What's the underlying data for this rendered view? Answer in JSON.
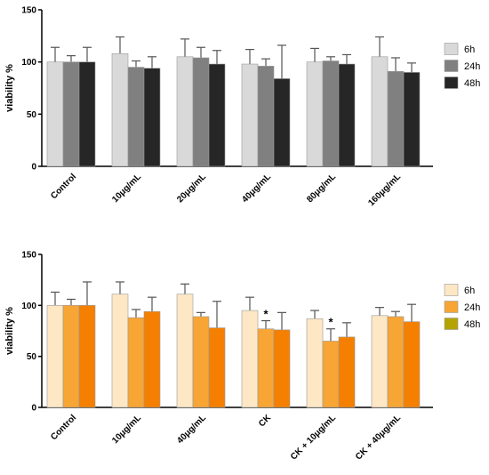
{
  "chart_data": [
    {
      "type": "bar",
      "title": "",
      "xlabel": "",
      "ylabel": "viability %",
      "ylim": [
        0,
        150
      ],
      "yticks": [
        0,
        50,
        100,
        150
      ],
      "categories": [
        "Control",
        "10μg/mL",
        "20μg/mL",
        "40μg/mL",
        "80μg/mL",
        "160μg/mL"
      ],
      "series": [
        {
          "name": "6h",
          "color": "#d9d9d9",
          "values": [
            100,
            108,
            105,
            98,
            100,
            105
          ],
          "errors": [
            14,
            16,
            17,
            14,
            13,
            19
          ]
        },
        {
          "name": "24h",
          "color": "#808080",
          "values": [
            100,
            95,
            104,
            96,
            101,
            91
          ],
          "errors": [
            6,
            6,
            10,
            7,
            4,
            13
          ]
        },
        {
          "name": "48h",
          "color": "#262626",
          "values": [
            100,
            94,
            98,
            84,
            98,
            90
          ],
          "errors": [
            14,
            11,
            13,
            32,
            9,
            9
          ]
        }
      ],
      "legend_position": "right",
      "grid": false
    },
    {
      "type": "bar",
      "title": "",
      "xlabel": "",
      "ylabel": "viability %",
      "ylim": [
        0,
        150
      ],
      "yticks": [
        0,
        50,
        100,
        150
      ],
      "categories": [
        "Control",
        "10μg/mL",
        "40μg/mL",
        "CK",
        "CK + 10μg/mL",
        "CK + 40μg/mL"
      ],
      "series": [
        {
          "name": "6h",
          "color": "#fde7c4",
          "values": [
            100,
            111,
            111,
            95,
            87,
            90
          ],
          "errors": [
            13,
            12,
            10,
            13,
            8,
            8
          ]
        },
        {
          "name": "24h",
          "color": "#f7a535",
          "values": [
            100,
            88,
            89,
            77,
            65,
            89
          ],
          "errors": [
            6,
            8,
            4,
            8,
            12,
            5
          ]
        },
        {
          "name": "48h",
          "color": "#f57f00",
          "values": [
            100,
            94,
            78,
            76,
            69,
            84
          ],
          "errors": [
            23,
            14,
            26,
            17,
            14,
            17
          ]
        }
      ],
      "legend_swatch_colors": [
        "#fde7c4",
        "#f7a535",
        "#b5a300"
      ],
      "annotations": [
        {
          "category": "CK",
          "series": "24h",
          "text": "*"
        },
        {
          "category": "CK + 10μg/mL",
          "series": "24h",
          "text": "*"
        }
      ],
      "legend_position": "right",
      "grid": false
    }
  ]
}
